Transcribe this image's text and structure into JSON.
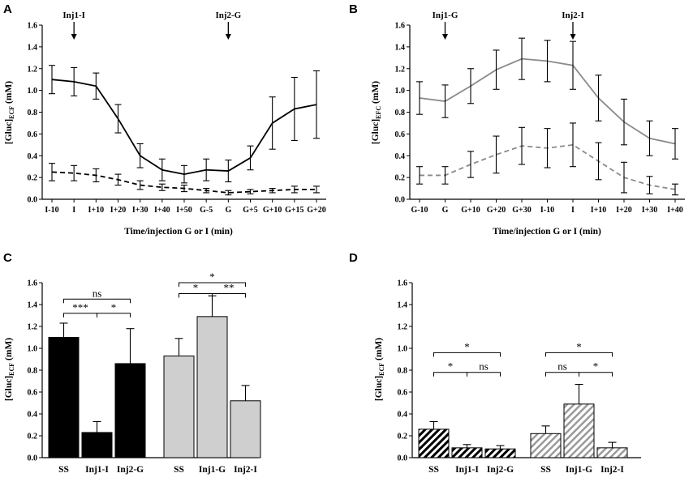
{
  "chart_data": [
    {
      "panel": "A",
      "type": "line",
      "xlabel": "Time/injection G or I (min)",
      "ylabel_main": "[Gluc]",
      "ylabel_sub": "ECF",
      "ylabel_unit": " (mM)",
      "ylim": [
        0,
        1.6
      ],
      "yticks": [
        "0.0",
        "0.2",
        "0.4",
        "0.6",
        "0.8",
        "1.0",
        "1.2",
        "1.4",
        "1.6"
      ],
      "categories": [
        "I-10",
        "I",
        "I+10",
        "I+20",
        "I+30",
        "I+40",
        "I+50",
        "G-5",
        "G",
        "G+5",
        "G+10",
        "G+15",
        "G+20"
      ],
      "annotations": [
        {
          "label": "Inj1-I",
          "at": 1
        },
        {
          "label": "Inj2-G",
          "at": 8
        }
      ],
      "series": [
        {
          "name": "solid",
          "style": "solid",
          "color": "#000000",
          "values": [
            1.1,
            1.08,
            1.04,
            0.74,
            0.4,
            0.27,
            0.23,
            0.27,
            0.26,
            0.38,
            0.7,
            0.83,
            0.87
          ],
          "errors": [
            0.13,
            0.13,
            0.12,
            0.13,
            0.11,
            0.1,
            0.08,
            0.1,
            0.1,
            0.11,
            0.24,
            0.29,
            0.31
          ]
        },
        {
          "name": "dashed",
          "style": "dashed",
          "color": "#000000",
          "values": [
            0.25,
            0.24,
            0.22,
            0.18,
            0.13,
            0.11,
            0.1,
            0.08,
            0.06,
            0.07,
            0.08,
            0.09,
            0.09
          ],
          "errors": [
            0.08,
            0.07,
            0.06,
            0.05,
            0.04,
            0.03,
            0.03,
            0.02,
            0.02,
            0.02,
            0.02,
            0.03,
            0.03
          ]
        }
      ]
    },
    {
      "panel": "B",
      "type": "line",
      "xlabel": "Time/injection G or I (min)",
      "ylabel_main": "[Gluc]",
      "ylabel_sub": "EFC",
      "ylabel_unit": " (mM)",
      "ylim": [
        0,
        1.6
      ],
      "yticks": [
        "0.0",
        "0.2",
        "0.4",
        "0.6",
        "0.8",
        "1.0",
        "1.2",
        "1.4",
        "1.6"
      ],
      "categories": [
        "G-10",
        "G",
        "G+10",
        "G+20",
        "G+30",
        "I-10",
        "I",
        "I+10",
        "I+20",
        "I+30",
        "I+40"
      ],
      "annotations": [
        {
          "label": "Inj1-G",
          "at": 1
        },
        {
          "label": "Inj2-I",
          "at": 6
        }
      ],
      "series": [
        {
          "name": "solid",
          "style": "solid",
          "color": "#8a8a8a",
          "values": [
            0.93,
            0.9,
            1.04,
            1.19,
            1.29,
            1.27,
            1.23,
            0.93,
            0.71,
            0.56,
            0.51
          ],
          "errors": [
            0.15,
            0.15,
            0.16,
            0.18,
            0.19,
            0.19,
            0.22,
            0.21,
            0.21,
            0.16,
            0.14
          ]
        },
        {
          "name": "dashed",
          "style": "dashed",
          "color": "#8a8a8a",
          "values": [
            0.22,
            0.22,
            0.32,
            0.41,
            0.49,
            0.47,
            0.5,
            0.35,
            0.2,
            0.13,
            0.09
          ],
          "errors": [
            0.08,
            0.08,
            0.12,
            0.17,
            0.17,
            0.18,
            0.2,
            0.17,
            0.14,
            0.08,
            0.05
          ]
        }
      ]
    },
    {
      "panel": "C",
      "type": "bar",
      "ylabel_main": "[Gluc]",
      "ylabel_sub": "ECF",
      "ylabel_unit": " (mM)",
      "ylim": [
        0,
        1.6
      ],
      "yticks": [
        "0.0",
        "0.2",
        "0.4",
        "0.6",
        "0.8",
        "1.0",
        "1.2",
        "1.4",
        "1.6"
      ],
      "categories": [
        "SS",
        "Inj1-I",
        "Inj2-G",
        "SS",
        "Inj1-G",
        "Inj2-I"
      ],
      "values": [
        1.1,
        0.23,
        0.86,
        0.93,
        1.29,
        0.52
      ],
      "errors": [
        0.13,
        0.1,
        0.32,
        0.16,
        0.19,
        0.14
      ],
      "fills": [
        "#000000",
        "#000000",
        "#000000",
        "#cfcfcf",
        "#cfcfcf",
        "#cfcfcf"
      ],
      "pattern": [
        "solid",
        "solid",
        "solid",
        "solid",
        "solid",
        "solid"
      ],
      "significance": [
        {
          "from": 0,
          "to": 2,
          "label": "ns",
          "y": 1.45
        },
        {
          "from": 0,
          "to": 1,
          "label": "***",
          "y": 1.32
        },
        {
          "from": 1,
          "to": 2,
          "label": "*",
          "y": 1.32
        },
        {
          "from": 3,
          "to": 5,
          "label": "*",
          "y": 1.6
        },
        {
          "from": 3,
          "to": 4,
          "label": "*",
          "y": 1.5
        },
        {
          "from": 4,
          "to": 5,
          "label": "**",
          "y": 1.5
        }
      ]
    },
    {
      "panel": "D",
      "type": "bar",
      "ylabel_main": "[Gluc]",
      "ylabel_sub": "ECF",
      "ylabel_unit": " (mM)",
      "ylim": [
        0,
        1.6
      ],
      "yticks": [
        "0.0",
        "0.2",
        "0.4",
        "0.6",
        "0.8",
        "1.0",
        "1.2",
        "1.4",
        "1.6"
      ],
      "categories": [
        "SS",
        "Inj1-I",
        "Inj2-G",
        "SS",
        "Inj1-G",
        "Inj2-I"
      ],
      "values": [
        0.26,
        0.09,
        0.08,
        0.22,
        0.49,
        0.09
      ],
      "errors": [
        0.07,
        0.03,
        0.03,
        0.07,
        0.18,
        0.05
      ],
      "fills": [
        "#000000",
        "#000000",
        "#000000",
        "#cfcfcf",
        "#cfcfcf",
        "#cfcfcf"
      ],
      "pattern": [
        "hatch",
        "hatch",
        "hatch",
        "hatch",
        "hatch",
        "hatch"
      ],
      "significance": [
        {
          "from": 0,
          "to": 2,
          "label": "*",
          "y": 0.96
        },
        {
          "from": 0,
          "to": 1,
          "label": "*",
          "y": 0.78
        },
        {
          "from": 1,
          "to": 2,
          "label": "ns",
          "y": 0.78
        },
        {
          "from": 3,
          "to": 5,
          "label": "*",
          "y": 0.96
        },
        {
          "from": 3,
          "to": 4,
          "label": "ns",
          "y": 0.78
        },
        {
          "from": 4,
          "to": 5,
          "label": "*",
          "y": 0.78
        }
      ]
    }
  ]
}
